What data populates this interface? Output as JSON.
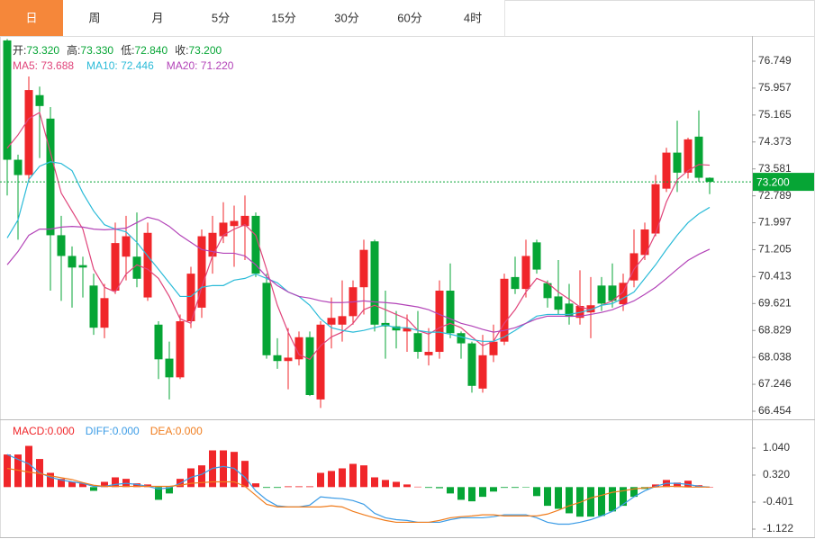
{
  "tabs": [
    "日",
    "周",
    "月",
    "5分",
    "15分",
    "30分",
    "60分",
    "4时"
  ],
  "active_tab": 0,
  "chart_data": [
    {
      "type": "candlestick",
      "ohlc_legend": [
        {
          "label": "开:",
          "value": "73.320"
        },
        {
          "label": "高:",
          "value": "73.330"
        },
        {
          "label": "低:",
          "value": "72.840"
        },
        {
          "label": "收:",
          "value": "73.200"
        }
      ],
      "ohlc_value_color": "#06a535",
      "up_color": "#f0262a",
      "down_color": "#06a535",
      "open": [
        77.36,
        73.85,
        73.4,
        75.75,
        75.06,
        71.63,
        71.02,
        70.75,
        70.15,
        68.91,
        70.0,
        71.0,
        71.0,
        69.8,
        69.0,
        68.0,
        67.45,
        69.1,
        69.5,
        71.0,
        71.6,
        71.9,
        71.9,
        72.2,
        70.23,
        68.1,
        67.93,
        67.98,
        68.63,
        66.8,
        69.0,
        69.0,
        69.25,
        70.1,
        71.45,
        69.05,
        68.95,
        68.8,
        68.75,
        68.1,
        68.2,
        70.0,
        68.75,
        68.45,
        67.12,
        68.1,
        68.5,
        70.4,
        70.05,
        71.42,
        70.22,
        69.83,
        69.62,
        69.2,
        69.36,
        70.15,
        70.15,
        69.6,
        70.3,
        71.05,
        71.68,
        73.0,
        74.06,
        73.47,
        74.53,
        73.32
      ],
      "high": [
        77.4,
        74.0,
        76.3,
        76.0,
        75.4,
        72.2,
        71.3,
        71.0,
        70.5,
        70.2,
        72.0,
        72.2,
        72.3,
        72.0,
        69.1,
        68.5,
        69.3,
        70.7,
        71.8,
        72.2,
        72.6,
        72.5,
        72.8,
        72.3,
        70.5,
        68.6,
        68.9,
        68.8,
        68.8,
        69.1,
        69.8,
        70.3,
        70.3,
        71.5,
        71.5,
        70.0,
        69.4,
        69.3,
        69.4,
        68.9,
        70.3,
        70.8,
        68.8,
        68.5,
        68.7,
        69.0,
        70.5,
        71.0,
        71.5,
        71.5,
        70.3,
        70.9,
        70.2,
        70.6,
        70.4,
        70.4,
        70.8,
        70.5,
        71.8,
        72.0,
        73.4,
        74.2,
        75.0,
        74.5,
        75.3,
        73.33
      ],
      "low": [
        72.8,
        71.5,
        73.2,
        73.9,
        70.0,
        69.7,
        69.5,
        69.8,
        68.7,
        68.6,
        69.9,
        70.3,
        70.1,
        69.7,
        67.4,
        66.8,
        67.4,
        68.9,
        69.2,
        70.5,
        71.4,
        70.7,
        70.9,
        70.4,
        68.0,
        67.7,
        67.1,
        67.8,
        66.9,
        66.55,
        68.3,
        68.5,
        69.0,
        69.3,
        68.8,
        68.0,
        68.3,
        68.2,
        68.0,
        67.8,
        68.0,
        68.6,
        68.0,
        67.0,
        67.0,
        67.9,
        68.4,
        69.9,
        69.8,
        70.5,
        69.5,
        69.3,
        69.0,
        69.0,
        68.6,
        69.4,
        69.5,
        69.4,
        70.1,
        70.9,
        71.6,
        72.9,
        72.9,
        73.3,
        73.2,
        72.84
      ],
      "close": [
        73.85,
        73.4,
        75.9,
        75.43,
        71.63,
        71.02,
        70.68,
        70.68,
        68.91,
        69.78,
        71.4,
        71.6,
        70.35,
        71.7,
        67.98,
        67.45,
        69.1,
        70.5,
        71.6,
        71.7,
        72.0,
        72.05,
        72.2,
        70.5,
        68.1,
        67.93,
        68.03,
        68.63,
        66.93,
        69.0,
        69.2,
        69.25,
        70.1,
        71.2,
        69.0,
        68.95,
        68.83,
        68.9,
        68.2,
        68.2,
        70.0,
        68.75,
        68.45,
        67.2,
        68.1,
        68.5,
        70.35,
        70.05,
        71.02,
        70.62,
        69.78,
        69.44,
        69.23,
        69.55,
        69.57,
        69.62,
        69.7,
        70.23,
        71.1,
        71.8,
        73.13,
        74.06,
        73.47,
        74.45,
        73.32,
        73.2
      ],
      "series": [
        {
          "name": "MA5: 73.688",
          "color": "#e0457b",
          "values": [
            74.19,
            74.58,
            75.06,
            75.24,
            74.06,
            72.87,
            72.34,
            71.81,
            70.63,
            70.1,
            69.96,
            70.49,
            70.76,
            70.63,
            70.36,
            69.83,
            69.17,
            69.04,
            70.1,
            71.02,
            71.63,
            71.81,
            71.94,
            71.63,
            70.63,
            69.57,
            68.78,
            68.12,
            67.98,
            68.38,
            68.64,
            68.78,
            69.04,
            69.44,
            69.57,
            69.44,
            69.3,
            69.17,
            68.83,
            68.72,
            68.91,
            69.04,
            68.91,
            68.64,
            68.38,
            68.51,
            69.04,
            69.44,
            69.96,
            70.36,
            70.23,
            69.96,
            69.75,
            69.52,
            69.44,
            69.57,
            69.7,
            69.96,
            70.63,
            71.02,
            71.68,
            72.61,
            73.26,
            73.53,
            73.71,
            73.69
          ]
        },
        {
          "name": "MA10: 72.446",
          "color": "#2bbbd8",
          "values": [
            71.55,
            72.08,
            73.27,
            73.66,
            73.79,
            73.74,
            73.53,
            72.87,
            72.34,
            71.94,
            71.81,
            71.73,
            71.42,
            71.02,
            70.63,
            70.23,
            69.83,
            69.83,
            70.1,
            70.15,
            70.15,
            70.31,
            70.36,
            70.49,
            70.36,
            70.23,
            69.96,
            69.83,
            69.57,
            69.17,
            68.91,
            68.83,
            68.78,
            68.83,
            68.91,
            68.99,
            68.91,
            68.91,
            68.83,
            68.78,
            68.78,
            68.72,
            68.64,
            68.56,
            68.51,
            68.51,
            68.64,
            68.83,
            69.04,
            69.25,
            69.3,
            69.3,
            69.3,
            69.36,
            69.44,
            69.57,
            69.62,
            69.78,
            69.96,
            70.36,
            70.76,
            71.21,
            71.63,
            72.0,
            72.26,
            72.45
          ]
        },
        {
          "name": "MA20: 71.220",
          "color": "#b344b8",
          "values": [
            70.76,
            71.15,
            71.63,
            71.81,
            71.81,
            71.87,
            71.89,
            71.87,
            71.81,
            71.79,
            71.81,
            71.84,
            72.0,
            72.16,
            72.08,
            71.89,
            71.63,
            71.42,
            71.21,
            71.15,
            71.1,
            71.1,
            71.02,
            70.76,
            70.41,
            70.15,
            69.96,
            69.83,
            69.78,
            69.7,
            69.65,
            69.65,
            69.67,
            69.7,
            69.67,
            69.65,
            69.62,
            69.57,
            69.52,
            69.44,
            69.3,
            69.17,
            69.04,
            68.96,
            68.86,
            68.78,
            68.83,
            68.91,
            69.04,
            69.17,
            69.25,
            69.25,
            69.25,
            69.25,
            69.3,
            69.36,
            69.44,
            69.57,
            69.7,
            69.89,
            70.1,
            70.36,
            70.63,
            70.89,
            71.07,
            71.22
          ]
        }
      ],
      "last_price": {
        "value": 73.2,
        "label": "73.200"
      },
      "ylim": [
        66.242,
        77.49
      ],
      "yticks": [
        76.749,
        75.957,
        75.165,
        74.373,
        73.581,
        72.789,
        71.997,
        71.205,
        70.413,
        69.621,
        68.829,
        68.038,
        67.246,
        66.454
      ],
      "grid": false
    },
    {
      "type": "macd",
      "negative_color": "#06a535",
      "series": [
        {
          "name": "MACD:0.000",
          "color": "#f0262a",
          "values": [
            0.87,
            0.87,
            1.1,
            0.75,
            0.38,
            0.22,
            0.14,
            0.1,
            -0.1,
            0.14,
            0.26,
            0.22,
            0.1,
            0.07,
            -0.34,
            -0.17,
            0.22,
            0.5,
            0.58,
            0.98,
            0.98,
            0.94,
            0.7,
            0.1,
            -0.02,
            -0.02,
            0.02,
            0.02,
            0.02,
            0.38,
            0.43,
            0.5,
            0.62,
            0.58,
            0.26,
            0.19,
            0.14,
            0.07,
            0.01,
            -0.02,
            -0.03,
            -0.17,
            -0.34,
            -0.38,
            -0.26,
            -0.12,
            -0.02,
            -0.02,
            -0.01,
            -0.24,
            -0.5,
            -0.58,
            -0.7,
            -0.79,
            -0.79,
            -0.77,
            -0.65,
            -0.5,
            -0.26,
            -0.05,
            0.07,
            0.19,
            0.12,
            0.17,
            0.05,
            0.0
          ]
        },
        {
          "name": "DIFF:0.000",
          "color": "#3c9ce6",
          "values": [
            0.87,
            0.74,
            0.62,
            0.38,
            0.26,
            0.19,
            0.14,
            0.1,
            0.02,
            0.02,
            0.07,
            0.1,
            0.07,
            0.02,
            -0.05,
            -0.02,
            0.1,
            0.26,
            0.34,
            0.5,
            0.55,
            0.5,
            0.26,
            -0.1,
            -0.34,
            -0.5,
            -0.53,
            -0.53,
            -0.48,
            -0.26,
            -0.29,
            -0.31,
            -0.36,
            -0.46,
            -0.7,
            -0.82,
            -0.87,
            -0.89,
            -0.94,
            -0.94,
            -0.94,
            -0.87,
            -0.82,
            -0.82,
            -0.82,
            -0.79,
            -0.74,
            -0.74,
            -0.74,
            -0.82,
            -0.94,
            -0.99,
            -0.99,
            -0.94,
            -0.87,
            -0.77,
            -0.65,
            -0.46,
            -0.26,
            -0.1,
            0.02,
            0.1,
            0.1,
            0.07,
            0.02,
            0.0
          ]
        },
        {
          "name": "DEA:0.000",
          "color": "#f07d1e",
          "values": [
            0.5,
            0.45,
            0.4,
            0.36,
            0.3,
            0.25,
            0.2,
            0.12,
            0.05,
            0.02,
            0.02,
            0.02,
            0.02,
            0.02,
            0.02,
            0.02,
            0.05,
            0.1,
            0.12,
            0.14,
            0.14,
            0.14,
            0.02,
            -0.22,
            -0.46,
            -0.53,
            -0.53,
            -0.53,
            -0.53,
            -0.53,
            -0.5,
            -0.53,
            -0.65,
            -0.74,
            -0.82,
            -0.89,
            -0.94,
            -0.94,
            -0.94,
            -0.94,
            -0.89,
            -0.82,
            -0.79,
            -0.77,
            -0.74,
            -0.74,
            -0.77,
            -0.77,
            -0.77,
            -0.77,
            -0.72,
            -0.62,
            -0.5,
            -0.41,
            -0.29,
            -0.22,
            -0.14,
            -0.1,
            -0.05,
            -0.02,
            0.0,
            0.02,
            0.02,
            0.0,
            0.0,
            0.0
          ]
        }
      ],
      "ylim": [
        -1.338,
        1.761
      ],
      "yticks": [
        {
          "value": 1.04,
          "label": "1.040"
        },
        {
          "value": 0.32,
          "label": "0.320"
        },
        -0.401,
        -1.122
      ]
    }
  ]
}
